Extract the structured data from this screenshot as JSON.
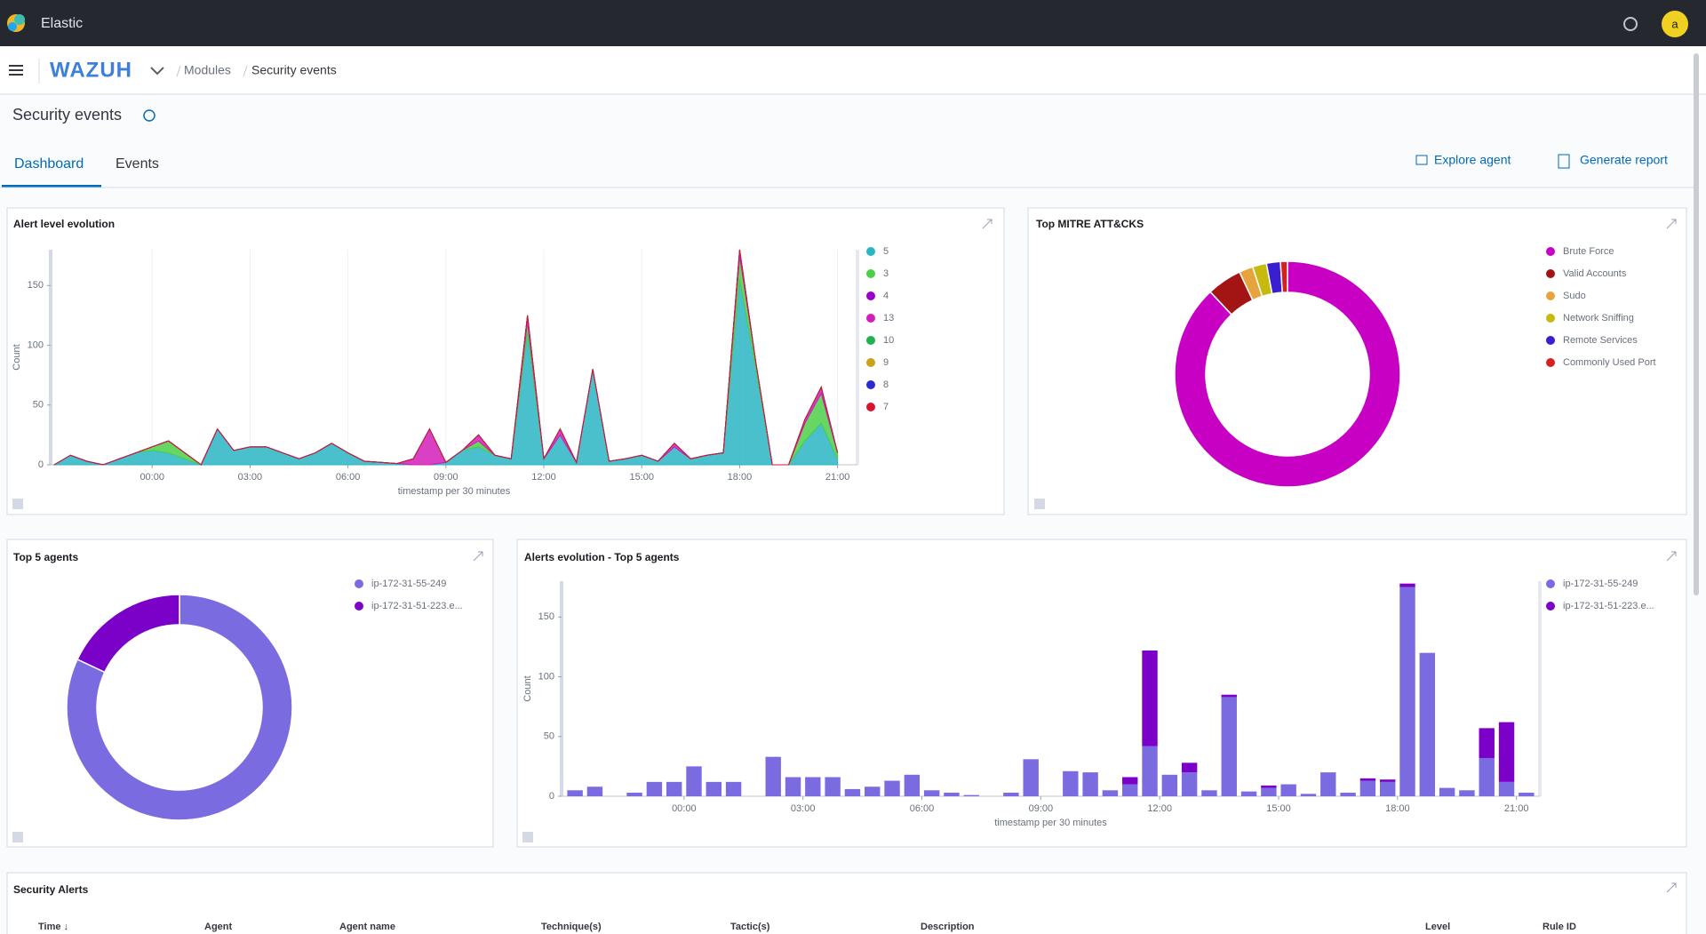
{
  "header": {
    "brand": "Elastic",
    "avatar": "a"
  },
  "nav": {
    "app": "WAZUH",
    "breadcrumbs": [
      "Modules",
      "Security events"
    ]
  },
  "page": {
    "title": "Security events",
    "tabs": [
      "Dashboard",
      "Events"
    ],
    "actions": [
      "Explore agent",
      "Generate report"
    ]
  },
  "panels": [
    {
      "title": "Alert level evolution",
      "chart": {
        "type": "area",
        "stacked": true,
        "grid": "x",
        "xlabel": "timestamp per 30 minutes",
        "ylabel": "Count",
        "x": [
          -3,
          -2.5,
          -2,
          -1.5,
          -1,
          -0.5,
          0,
          0.5,
          1,
          1.5,
          2,
          2.5,
          3,
          3.5,
          4,
          4.5,
          5,
          5.5,
          6,
          6.5,
          7,
          7.5,
          8,
          8.5,
          9,
          9.5,
          10,
          10.5,
          11,
          11.5,
          12,
          12.5,
          13,
          13.5,
          14,
          14.5,
          15,
          15.5,
          16,
          16.5,
          17,
          17.5,
          18,
          18.5,
          19,
          19.5,
          20,
          20.5,
          21
        ],
        "xlim": [
          -3,
          21.5
        ],
        "xticks": [
          {
            "value": 0,
            "label": "00:00"
          },
          {
            "value": 3,
            "label": "03:00"
          },
          {
            "value": 6,
            "label": "06:00"
          },
          {
            "value": 9,
            "label": "09:00"
          },
          {
            "value": 12,
            "label": "12:00"
          },
          {
            "value": 15,
            "label": "15:00"
          },
          {
            "value": 18,
            "label": "18:00"
          },
          {
            "value": 21,
            "label": "21:00"
          }
        ],
        "ylim": [
          0,
          180
        ],
        "yticks": [
          0,
          50,
          100,
          150
        ],
        "series": [
          {
            "name": "5",
            "color": "#29b5c2",
            "values": [
              0,
              8,
              3,
              0,
              5,
              10,
              12,
              10,
              5,
              0,
              30,
              12,
              15,
              15,
              10,
              5,
              10,
              18,
              10,
              3,
              2,
              1,
              0,
              0,
              2,
              12,
              15,
              8,
              5,
              110,
              5,
              25,
              2,
              80,
              3,
              5,
              8,
              3,
              15,
              5,
              8,
              10,
              155,
              80,
              0,
              0,
              20,
              35,
              5
            ]
          },
          {
            "name": "3",
            "color": "#4ccf46",
            "values": [
              0,
              0,
              0,
              0,
              0,
              0,
              3,
              10,
              5,
              0,
              0,
              0,
              0,
              0,
              0,
              0,
              0,
              0,
              0,
              0,
              0,
              0,
              0,
              0,
              0,
              0,
              5,
              0,
              0,
              10,
              0,
              0,
              0,
              0,
              0,
              0,
              0,
              0,
              0,
              0,
              0,
              0,
              20,
              5,
              0,
              0,
              15,
              25,
              5
            ]
          },
          {
            "name": "4",
            "color": "#9b00c9",
            "values": [
              0,
              0,
              0,
              0,
              0,
              0,
              0,
              0,
              0,
              0,
              0,
              0,
              0,
              0,
              0,
              0,
              0,
              0,
              0,
              0,
              0,
              0,
              0,
              0,
              0,
              0,
              0,
              0,
              0,
              0,
              0,
              0,
              0,
              0,
              0,
              0,
              0,
              0,
              0,
              0,
              0,
              0,
              0,
              0,
              0,
              0,
              0,
              0,
              0
            ]
          },
          {
            "name": "13",
            "color": "#d31fb8",
            "values": [
              0,
              0,
              0,
              0,
              0,
              0,
              0,
              0,
              0,
              0,
              0,
              0,
              0,
              0,
              0,
              0,
              0,
              0,
              0,
              0,
              0,
              0,
              5,
              30,
              0,
              0,
              5,
              0,
              0,
              5,
              0,
              5,
              0,
              0,
              0,
              0,
              0,
              0,
              3,
              0,
              0,
              0,
              5,
              0,
              0,
              0,
              3,
              5,
              0
            ]
          },
          {
            "name": "10",
            "color": "#22b14c",
            "values": [
              0,
              0,
              0,
              0,
              0,
              0,
              0,
              0,
              0,
              0,
              0,
              0,
              0,
              0,
              0,
              0,
              0,
              0,
              0,
              0,
              0,
              0,
              0,
              0,
              0,
              0,
              0,
              0,
              0,
              0,
              0,
              0,
              0,
              0,
              0,
              0,
              0,
              0,
              0,
              0,
              0,
              0,
              0,
              0,
              0,
              0,
              0,
              0,
              0
            ]
          },
          {
            "name": "9",
            "color": "#c7a21a",
            "values": [
              0,
              0,
              0,
              0,
              0,
              0,
              0,
              0,
              0,
              0,
              0,
              0,
              0,
              0,
              0,
              0,
              0,
              0,
              0,
              0,
              0,
              0,
              0,
              0,
              0,
              0,
              0,
              0,
              0,
              0,
              0,
              0,
              0,
              0,
              0,
              0,
              0,
              0,
              0,
              0,
              0,
              0,
              0,
              0,
              0,
              0,
              0,
              0,
              0
            ]
          },
          {
            "name": "8",
            "color": "#2b2bd1",
            "values": [
              0,
              0,
              0,
              0,
              0,
              0,
              0,
              0,
              0,
              0,
              0,
              0,
              0,
              0,
              0,
              0,
              0,
              0,
              0,
              0,
              0,
              0,
              0,
              0,
              0,
              0,
              0,
              0,
              0,
              0,
              0,
              0,
              0,
              0,
              0,
              0,
              0,
              0,
              0,
              0,
              0,
              0,
              0,
              0,
              0,
              0,
              0,
              0,
              0
            ]
          },
          {
            "name": "7",
            "color": "#d8152f",
            "values": [
              0,
              0,
              0,
              0,
              0,
              0,
              0,
              0,
              0,
              0,
              0,
              0,
              0,
              0,
              0,
              0,
              0,
              0,
              0,
              0,
              0,
              0,
              0,
              0,
              0,
              0,
              0,
              0,
              0,
              0,
              0,
              0,
              0,
              0,
              0,
              0,
              0,
              0,
              0,
              0,
              0,
              0,
              0,
              0,
              0,
              0,
              0,
              0,
              0
            ]
          }
        ]
      }
    },
    {
      "title": "Top MITRE ATT&CKS",
      "chart": {
        "type": "donut",
        "categories": [
          "Brute Force",
          "Valid Accounts",
          "Sudo",
          "Network Sniffing",
          "Remote Services",
          "Commonly Used Port"
        ],
        "values": [
          88,
          5,
          2,
          2,
          2,
          1
        ],
        "colors": [
          "#c800c3",
          "#a31515",
          "#e7a33e",
          "#c7b90e",
          "#3a1fd0",
          "#d62020"
        ]
      }
    },
    {
      "title": "Top 5 agents",
      "chart": {
        "type": "donut",
        "categories": [
          "ip-172-31-55-249",
          "ip-172-31-51-223.e..."
        ],
        "values": [
          82,
          18
        ],
        "colors": [
          "#7b6be0",
          "#7b00c8"
        ]
      }
    },
    {
      "title": "Alerts evolution - Top 5 agents",
      "chart": {
        "type": "bar",
        "stacked": true,
        "bar_width": 0.5,
        "xlabel": "timestamp per 30 minutes",
        "ylabel": "Count",
        "x": [
          -3,
          -2.5,
          -2,
          -1.5,
          -1,
          -0.5,
          0,
          0.5,
          1,
          1.5,
          2,
          2.5,
          3,
          3.5,
          4,
          4.5,
          5,
          5.5,
          6,
          6.5,
          7,
          7.5,
          8,
          8.5,
          9,
          9.5,
          10,
          10.5,
          11,
          11.5,
          12,
          12.5,
          13,
          13.5,
          14,
          14.5,
          15,
          15.5,
          16,
          16.5,
          17,
          17.5,
          18,
          18.5,
          19,
          19.5,
          20,
          20.5,
          21
        ],
        "xlim": [
          -3,
          21.5
        ],
        "xticks": [
          {
            "value": 0,
            "label": "00:00"
          },
          {
            "value": 3,
            "label": "03:00"
          },
          {
            "value": 6,
            "label": "06:00"
          },
          {
            "value": 9,
            "label": "09:00"
          },
          {
            "value": 12,
            "label": "12:00"
          },
          {
            "value": 15,
            "label": "15:00"
          },
          {
            "value": 18,
            "label": "18:00"
          },
          {
            "value": 21,
            "label": "21:00"
          }
        ],
        "ylim": [
          0,
          180
        ],
        "yticks": [
          0,
          50,
          100,
          150
        ],
        "series": [
          {
            "name": "ip-172-31-55-249",
            "color": "#7b6be0",
            "values": [
              5,
              8,
              0,
              3,
              12,
              12,
              25,
              12,
              12,
              0,
              33,
              16,
              16,
              16,
              6,
              8,
              13,
              18,
              5,
              3,
              1,
              0,
              3,
              31,
              0,
              21,
              20,
              5,
              10,
              42,
              18,
              20,
              5,
              83,
              4,
              7,
              10,
              2,
              20,
              3,
              13,
              12,
              175,
              120,
              7,
              5,
              32,
              12,
              3
            ]
          },
          {
            "name": "ip-172-31-51-223.e...",
            "color": "#7b00c8",
            "values": [
              0,
              0,
              0,
              0,
              0,
              0,
              0,
              0,
              0,
              0,
              0,
              0,
              0,
              0,
              0,
              0,
              0,
              0,
              0,
              0,
              0,
              0,
              0,
              0,
              0,
              0,
              0,
              0,
              6,
              80,
              0,
              8,
              0,
              2,
              0,
              2,
              0,
              0,
              0,
              0,
              2,
              2,
              3,
              0,
              0,
              0,
              25,
              50,
              0
            ]
          }
        ]
      }
    }
  ],
  "table": {
    "title": "Security Alerts",
    "columns": [
      "Time ↓",
      "Agent",
      "Agent name",
      "Technique(s)",
      "Tactic(s)",
      "Description",
      "Level",
      "Rule ID"
    ]
  }
}
